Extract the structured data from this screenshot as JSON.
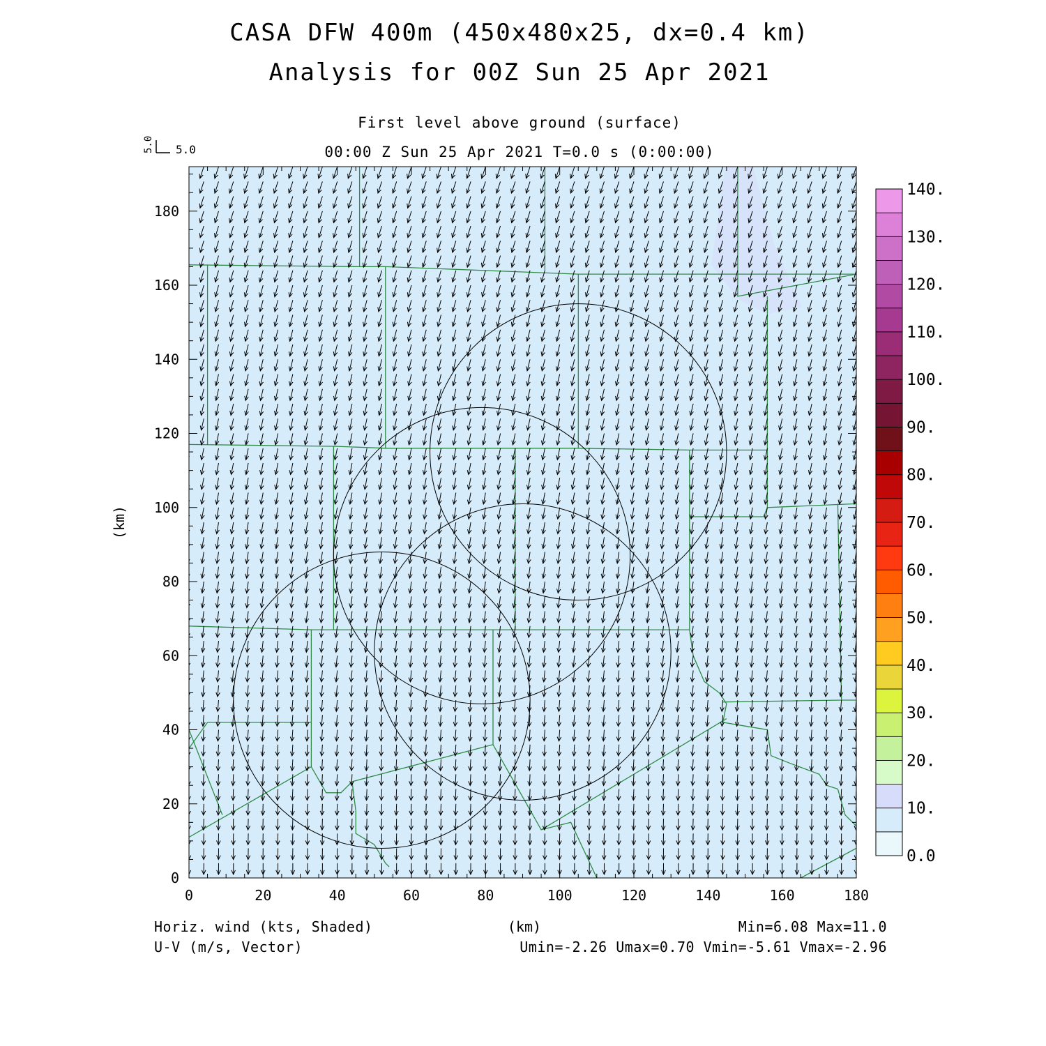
{
  "chart_data": {
    "type": "vector-field",
    "title": "CASA DFW 400m (450x480x25, dx=0.4 km)",
    "subtitle": "Analysis for 00Z Sun 25 Apr 2021",
    "level": "First level above ground (surface)",
    "time_label": "00:00 Z Sun 25 Apr 2021   T=0.0 s (0:00:00)",
    "xlabel": "(km)",
    "ylabel": "(km)",
    "xlim": [
      0,
      180
    ],
    "ylim": [
      0,
      192
    ],
    "xticks": [
      0,
      20,
      40,
      60,
      80,
      100,
      120,
      140,
      160,
      180
    ],
    "yticks": [
      0,
      20,
      40,
      60,
      80,
      100,
      120,
      140,
      160,
      180
    ],
    "ref_vector": {
      "u_label": "5.0",
      "v_label": "5.0",
      "u": 5.0,
      "v": 5.0
    },
    "vector_grid_spacing_km": 4,
    "vector_field": {
      "u_north": -1.6,
      "u_south": 0.0,
      "v_north": -4.8,
      "v_south": -4.6
    },
    "range_rings": [
      {
        "name": "ring-1",
        "center": [
          52,
          48
        ],
        "radius": 40
      },
      {
        "name": "ring-2",
        "center": [
          90,
          61
        ],
        "radius": 40
      },
      {
        "name": "ring-3",
        "center": [
          79,
          87
        ],
        "radius": 40
      },
      {
        "name": "ring-4",
        "center": [
          105,
          115
        ],
        "radius": 40
      }
    ],
    "county_lines": [
      [
        [
          0,
          165.5
        ],
        [
          46,
          165
        ],
        [
          53,
          165
        ],
        [
          105,
          163
        ],
        [
          147,
          163
        ],
        [
          180,
          163
        ]
      ],
      [
        [
          0,
          117
        ],
        [
          40,
          116.5
        ],
        [
          53,
          116
        ],
        [
          105,
          116
        ],
        [
          135,
          115.5
        ],
        [
          156,
          115.5
        ]
      ],
      [
        [
          0,
          68
        ],
        [
          33,
          67
        ],
        [
          88,
          67
        ],
        [
          135,
          67
        ]
      ],
      [
        [
          46,
          192
        ],
        [
          46,
          165
        ]
      ],
      [
        [
          96,
          192
        ],
        [
          96,
          164
        ]
      ],
      [
        [
          5,
          165.5
        ],
        [
          5,
          117
        ]
      ],
      [
        [
          53,
          165
        ],
        [
          53,
          116
        ]
      ],
      [
        [
          105,
          163
        ],
        [
          105,
          116
        ]
      ],
      [
        [
          39,
          116.5
        ],
        [
          39,
          67
        ]
      ],
      [
        [
          88,
          116
        ],
        [
          88,
          67
        ]
      ],
      [
        [
          135,
          115.5
        ],
        [
          135,
          67
        ]
      ],
      [
        [
          148,
          192
        ],
        [
          148,
          157
        ],
        [
          180,
          163
        ]
      ],
      [
        [
          156,
          157
        ],
        [
          156,
          100
        ],
        [
          180,
          101
        ]
      ],
      [
        [
          135,
          97.5
        ],
        [
          155,
          97.5
        ],
        [
          156,
          100
        ]
      ],
      [
        [
          175,
          101
        ],
        [
          176,
          48
        ],
        [
          180,
          48
        ]
      ],
      [
        [
          135,
          67
        ],
        [
          136,
          60
        ],
        [
          139,
          53
        ],
        [
          143,
          50
        ],
        [
          145,
          47
        ],
        [
          144,
          42
        ],
        [
          150,
          41
        ],
        [
          156,
          40
        ],
        [
          157,
          33
        ],
        [
          162,
          31
        ],
        [
          170,
          28
        ],
        [
          172,
          25
        ],
        [
          175,
          24
        ],
        [
          177,
          17
        ],
        [
          179,
          15
        ],
        [
          180,
          14
        ]
      ],
      [
        [
          144,
          47.5
        ],
        [
          176,
          48
        ]
      ],
      [
        [
          0,
          40
        ],
        [
          9,
          17
        ]
      ],
      [
        [
          0,
          35
        ],
        [
          5,
          42
        ],
        [
          33,
          42
        ]
      ],
      [
        [
          33,
          67
        ],
        [
          33,
          30
        ]
      ],
      [
        [
          0,
          11
        ],
        [
          33,
          30
        ],
        [
          37,
          23
        ],
        [
          41,
          23
        ],
        [
          44,
          26
        ],
        [
          82,
          36
        ],
        [
          82,
          67
        ]
      ],
      [
        [
          44,
          26
        ],
        [
          45,
          18
        ],
        [
          45,
          12
        ],
        [
          50,
          9
        ],
        [
          53,
          4
        ],
        [
          54,
          3
        ]
      ],
      [
        [
          82,
          36
        ],
        [
          95,
          13
        ],
        [
          103,
          15
        ],
        [
          110,
          0
        ]
      ],
      [
        [
          95,
          13
        ],
        [
          145,
          43
        ]
      ],
      [
        [
          165,
          0
        ],
        [
          180,
          8
        ]
      ]
    ],
    "colorbar": {
      "levels": [
        0,
        5,
        10,
        15,
        20,
        25,
        30,
        35,
        40,
        45,
        50,
        55,
        60,
        65,
        70,
        75,
        80,
        85,
        90,
        95,
        100,
        105,
        110,
        115,
        120,
        125,
        130,
        135,
        140
      ],
      "labels": [
        "0.0",
        "10.",
        "20.",
        "30.",
        "40.",
        "50.",
        "60.",
        "70.",
        "80.",
        "90.",
        "100.",
        "110.",
        "120.",
        "130.",
        "140."
      ],
      "colors": [
        "#eaf7fb",
        "#d6ecfa",
        "#d7dcfa",
        "#d7fbc8",
        "#c4f29c",
        "#c9f070",
        "#dcf43d",
        "#ead63a",
        "#ffcb20",
        "#ffa020",
        "#ff8010",
        "#ff5c00",
        "#ff3a10",
        "#e82414",
        "#d41c12",
        "#c00808",
        "#a80000",
        "#701018",
        "#761433",
        "#7f1a45",
        "#8e2460",
        "#9b2d76",
        "#a63a90",
        "#b04aa3",
        "#be60b8",
        "#cc70c8",
        "#dc80d8",
        "#ee98ea",
        "#fbb0f6"
      ]
    },
    "colors": {
      "background": "#d6ecfa",
      "shaded_region": "#d7dcfa",
      "county_line": "#2e8a44",
      "vector": "#000000",
      "range_ring": "#000000"
    },
    "footer": {
      "left1": "Horiz. wind (kts, Shaded)",
      "left2": "U-V (m/s, Vector)",
      "right1": "Min=6.08 Max=11.0",
      "right2": "Umin=-2.26 Umax=0.70 Vmin=-5.61 Vmax=-2.96"
    }
  }
}
